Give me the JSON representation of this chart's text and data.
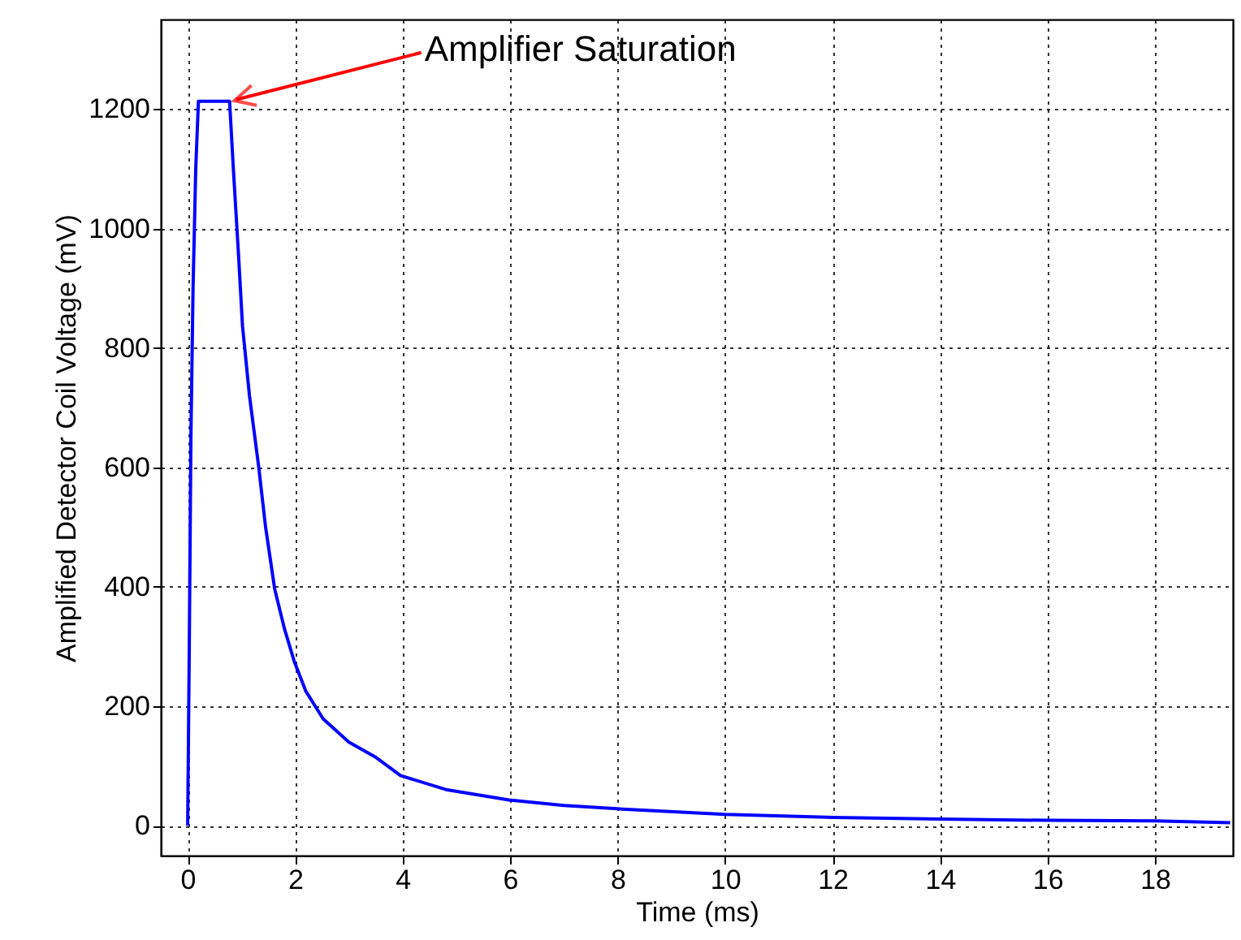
{
  "chart_data": {
    "type": "line",
    "xlabel": "Time (ms)",
    "ylabel": "Amplified Detector Coil Voltage (mV)",
    "x": [
      0.0,
      0.03,
      0.06,
      0.1,
      0.15,
      0.2,
      0.5,
      0.78,
      0.85,
      0.95,
      1.02,
      1.15,
      1.32,
      1.45,
      1.62,
      1.8,
      1.98,
      2.2,
      2.52,
      3.0,
      3.51,
      3.96,
      4.83,
      5.98,
      7.0,
      8.23,
      10.0,
      12.0,
      14.0,
      16.0,
      18.0,
      19.4
    ],
    "series": [
      {
        "color": "#0000ff",
        "values": [
          0,
          300,
          650,
          900,
          1100,
          1213,
          1213,
          1213,
          1100,
          950,
          837,
          720,
          602,
          500,
          396,
          330,
          276,
          225,
          179,
          140,
          114,
          84,
          60,
          43,
          34,
          27,
          19,
          14,
          11,
          9,
          8,
          5
        ]
      }
    ],
    "xlim": [
      -0.5,
      19.45
    ],
    "ylim": [
      -50,
      1350
    ],
    "xticks": [
      0,
      2,
      4,
      6,
      8,
      10,
      12,
      14,
      16,
      18
    ],
    "yticks": [
      0,
      200,
      400,
      600,
      800,
      1000,
      1200
    ],
    "grid": true,
    "marker": "none",
    "line_style": "solid",
    "annotations": [
      {
        "text": "Amplifier Saturation",
        "x": 0.78,
        "y": 1213
      }
    ]
  }
}
